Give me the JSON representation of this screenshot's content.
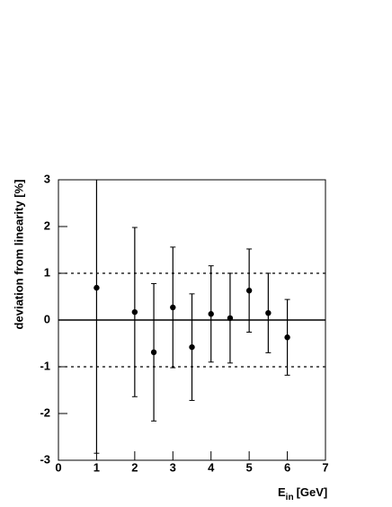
{
  "chart_data": {
    "type": "errorbar",
    "y_label": "deviation from linearity [%]",
    "x_label": {
      "main": "E",
      "sub": "in",
      "unit": "[GeV]"
    },
    "x": [
      1,
      2,
      2.5,
      3,
      3.5,
      4,
      4.5,
      5,
      5.5,
      6
    ],
    "values": [
      0.69,
      0.17,
      -0.69,
      0.27,
      -0.58,
      0.13,
      0.04,
      0.63,
      0.15,
      -0.37
    ],
    "errors": [
      3.54,
      1.81,
      1.47,
      1.29,
      1.14,
      1.03,
      0.96,
      0.89,
      0.85,
      0.81
    ],
    "color": "#000000",
    "xlim": [
      0,
      7
    ],
    "xticks": [
      0,
      1,
      2,
      3,
      4,
      5,
      6,
      7
    ],
    "ylim": [
      -3,
      3
    ],
    "yticks": [
      -3,
      -2,
      -1,
      0,
      1,
      2,
      3
    ],
    "hlines": [
      {
        "value": 1,
        "style": "dashed"
      },
      {
        "value": 0,
        "style": "solid"
      },
      {
        "value": -1,
        "style": "dashed"
      }
    ]
  }
}
